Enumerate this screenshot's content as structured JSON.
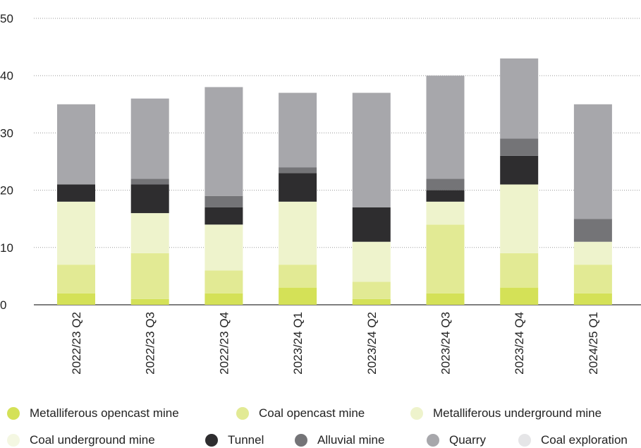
{
  "chart_data": {
    "type": "bar",
    "stacked": true,
    "categories": [
      "2022/23 Q2",
      "2022/23 Q3",
      "2022/23 Q4",
      "2023/24 Q1",
      "2023/24 Q2",
      "2023/24 Q3",
      "2023/24 Q4",
      "2024/25 Q1"
    ],
    "ylim": [
      0,
      50
    ],
    "yticks": [
      0,
      10,
      20,
      30,
      40,
      50
    ],
    "grid": true,
    "legend_position": "bottom",
    "series": [
      {
        "name": "Metalliferous opencast mine",
        "color": "#d4e157",
        "values": [
          2,
          1,
          2,
          3,
          1,
          2,
          3,
          2
        ]
      },
      {
        "name": "Coal opencast mine",
        "color": "#e2ea94",
        "values": [
          5,
          8,
          4,
          4,
          3,
          12,
          6,
          5
        ]
      },
      {
        "name": "Metalliferous underground mine",
        "color": "#eef3cc",
        "values": [
          11,
          7,
          8,
          11,
          7,
          4,
          12,
          4
        ]
      },
      {
        "name": "Coal underground mine",
        "color": "#f4f7e2",
        "values": [
          0,
          0,
          0,
          0,
          0,
          0,
          0,
          0
        ]
      },
      {
        "name": "Tunnel",
        "color": "#2e2d2f",
        "values": [
          3,
          5,
          3,
          5,
          6,
          2,
          5,
          0
        ]
      },
      {
        "name": "Alluvial mine",
        "color": "#747477",
        "values": [
          0,
          1,
          2,
          1,
          0,
          2,
          3,
          4
        ]
      },
      {
        "name": "Quarry",
        "color": "#a7a7ab",
        "values": [
          14,
          14,
          19,
          13,
          20,
          18,
          14,
          20
        ]
      },
      {
        "name": "Coal exploration",
        "color": "#e5e5e7",
        "values": [
          0,
          0,
          0,
          0,
          0,
          0,
          0,
          0
        ]
      }
    ]
  }
}
